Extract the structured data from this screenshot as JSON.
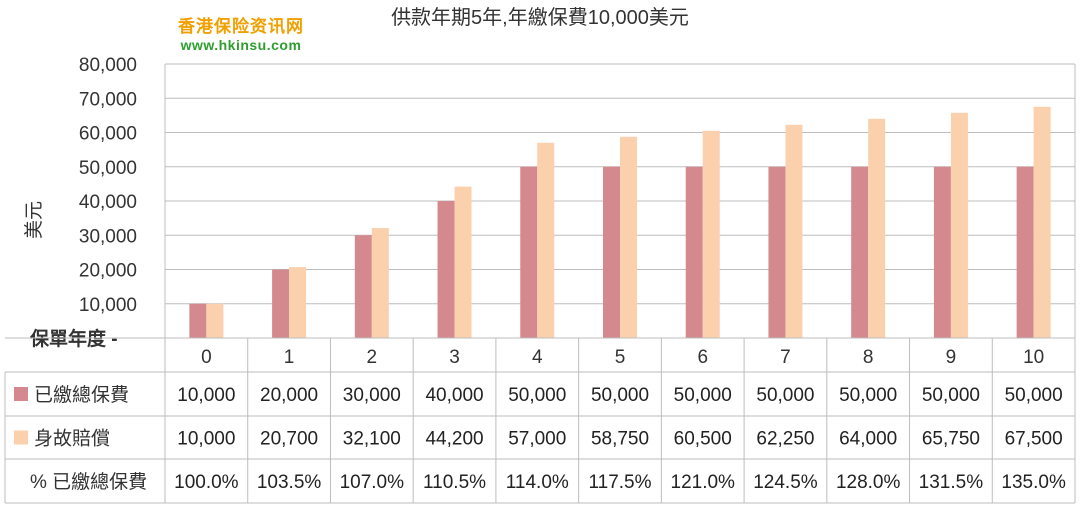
{
  "watermark": {
    "line1": "香港保险资讯网",
    "line2": "www.hkinsu.com"
  },
  "chart_data": {
    "type": "bar",
    "title": "供款年期5年,年繳保費10,000美元",
    "ylabel": "美元",
    "xlabel": "保單年度 -",
    "ylim": [
      0,
      80000
    ],
    "yticks": [
      80000,
      70000,
      60000,
      50000,
      40000,
      30000,
      20000,
      10000
    ],
    "ytick_labels": [
      "80,000",
      "70,000",
      "60,000",
      "50,000",
      "40,000",
      "30,000",
      "20,000",
      "10,000"
    ],
    "grid": true,
    "categories": [
      "0",
      "1",
      "2",
      "3",
      "4",
      "5",
      "6",
      "7",
      "8",
      "9",
      "10"
    ],
    "series": [
      {
        "name": "已繳總保費",
        "color": "#d4898e",
        "values": [
          10000,
          20000,
          30000,
          40000,
          50000,
          50000,
          50000,
          50000,
          50000,
          50000,
          50000
        ]
      },
      {
        "name": "身故賠償",
        "color": "#fbd0ad",
        "values": [
          10000,
          20700,
          32100,
          44200,
          57000,
          58750,
          60500,
          62250,
          64000,
          65750,
          67500
        ]
      }
    ],
    "table": {
      "rows": [
        {
          "label": "已繳總保費",
          "swatch": "#d4898e",
          "cells": [
            "10,000",
            "20,000",
            "30,000",
            "40,000",
            "50,000",
            "50,000",
            "50,000",
            "50,000",
            "50,000",
            "50,000",
            "50,000"
          ]
        },
        {
          "label": "身故賠償",
          "swatch": "#fbd0ad",
          "cells": [
            "10,000",
            "20,700",
            "32,100",
            "44,200",
            "57,000",
            "58,750",
            "60,500",
            "62,250",
            "64,000",
            "65,750",
            "67,500"
          ]
        },
        {
          "label": "% 已繳總保費",
          "swatch": "",
          "cells": [
            "100.0%",
            "103.5%",
            "107.0%",
            "110.5%",
            "114.0%",
            "117.5%",
            "121.0%",
            "124.5%",
            "128.0%",
            "131.5%",
            "135.0%"
          ]
        }
      ]
    }
  }
}
